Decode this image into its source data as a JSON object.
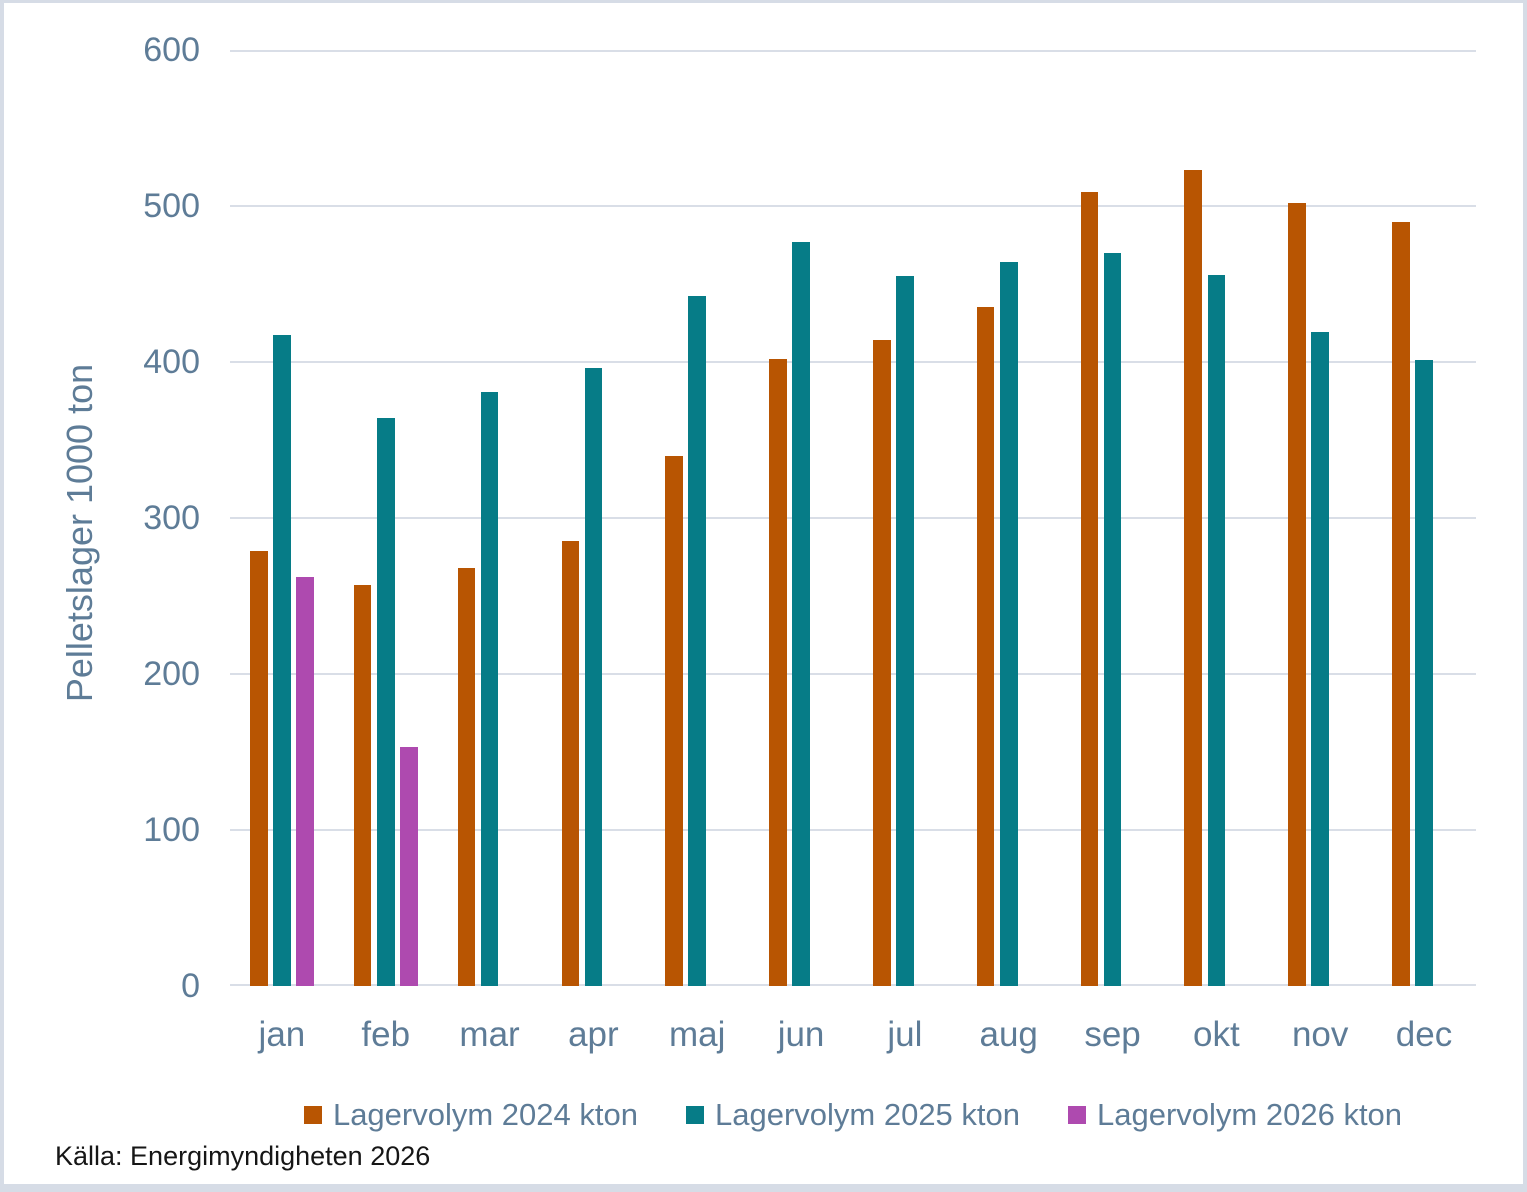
{
  "chart_data": {
    "type": "bar",
    "title": "",
    "xlabel": "",
    "ylabel": "Pelletslager 1000 ton",
    "ylim": [
      0,
      600
    ],
    "yticks": [
      0,
      100,
      200,
      300,
      400,
      500,
      600
    ],
    "grid": "horizontal",
    "legend_position": "bottom",
    "categories": [
      "jan",
      "feb",
      "mar",
      "apr",
      "maj",
      "jun",
      "jul",
      "aug",
      "sep",
      "okt",
      "nov",
      "dec"
    ],
    "series": [
      {
        "name": "Lagervolym 2024 kton",
        "color": "#b85502",
        "values": [
          279,
          257,
          268,
          285,
          340,
          402,
          414,
          435,
          509,
          523,
          502,
          490
        ]
      },
      {
        "name": "Lagervolym 2025 kton",
        "color": "#067c87",
        "values": [
          417,
          364,
          381,
          396,
          442,
          477,
          455,
          464,
          470,
          456,
          419,
          401
        ]
      },
      {
        "name": "Lagervolym 2026 kton",
        "color": "#ae4aaf",
        "values": [
          262,
          153,
          null,
          null,
          null,
          null,
          null,
          null,
          null,
          null,
          null,
          null
        ]
      }
    ]
  },
  "source_note": "Källa: Energimyndigheten 2026",
  "colors": {
    "axis_text": "#5e7c97",
    "gridline": "#d9dee7",
    "frame_border": "#d6dce6",
    "background": "#ffffff",
    "source_text": "#161616"
  }
}
